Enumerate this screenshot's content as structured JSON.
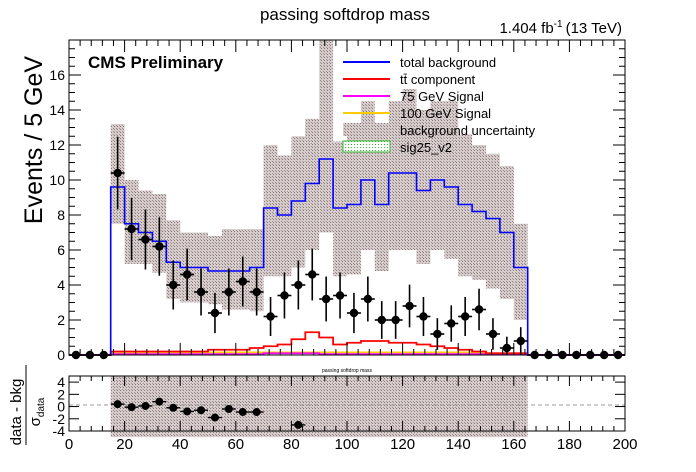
{
  "header": {
    "title": "passing softdrop mass",
    "lumi": "1.404 fb",
    "lumi_exp": "-1",
    "energy": "(13 TeV)",
    "cms_label": "CMS Preliminary"
  },
  "legend": {
    "entries": [
      {
        "label": "total background",
        "color": "#0000ff",
        "kind": "line"
      },
      {
        "label": "tt̄ component",
        "color": "#ff0000",
        "kind": "line"
      },
      {
        "label": "75 GeV Signal",
        "color": "#ff00ff",
        "kind": "line"
      },
      {
        "label": "100 GeV Signal",
        "color": "#ffcc00",
        "kind": "line"
      },
      {
        "label": "background uncertainty",
        "color": "#b8aaaa",
        "kind": "box"
      },
      {
        "label": "sig25_v2",
        "color": "#33bb33",
        "kind": "hatched"
      }
    ]
  },
  "colors": {
    "background_line": "#0000ff",
    "ttbar_line": "#ff0000",
    "signal75_line": "#ff00ff",
    "signal100_line": "#ffcc00",
    "uncertainty_fill": "#b8aaaa",
    "data_marker": "#000000"
  },
  "chart_data": [
    {
      "type": "line",
      "title": "passing softdrop mass",
      "ylabel": "Events / 5 GeV",
      "xlim": [
        0,
        200
      ],
      "ylim": [
        0,
        18
      ],
      "yticks": [
        0,
        2,
        4,
        6,
        8,
        10,
        12,
        14,
        16
      ],
      "xticks": [
        0,
        20,
        40,
        60,
        80,
        100,
        120,
        140,
        160,
        180,
        200
      ],
      "grid": false,
      "legend_position": "top-right",
      "bin_width": 5,
      "bin_edges_start": 0,
      "series": [
        {
          "name": "total background",
          "values": [
            0,
            0,
            0,
            9.6,
            7.5,
            7.0,
            6.5,
            5.3,
            5.0,
            5.0,
            4.8,
            4.8,
            4.8,
            5.0,
            8.4,
            8.0,
            8.8,
            9.8,
            11.2,
            8.4,
            8.6,
            10.0,
            8.6,
            10.4,
            10.4,
            9.4,
            10.0,
            9.6,
            8.6,
            8.2,
            7.8,
            7.0,
            5.0,
            0,
            0,
            0,
            0,
            0,
            0,
            0
          ]
        },
        {
          "name": "tt̄ component",
          "values": [
            0,
            0,
            0,
            0.2,
            0.2,
            0.2,
            0.2,
            0.2,
            0.2,
            0.2,
            0.3,
            0.3,
            0.3,
            0.4,
            0.5,
            0.6,
            0.9,
            1.3,
            1.0,
            0.6,
            0.7,
            0.8,
            0.8,
            0.7,
            0.7,
            0.6,
            0.5,
            0.4,
            0.3,
            0.2,
            0.1,
            0.1,
            0.1,
            0,
            0,
            0,
            0,
            0,
            0,
            0
          ]
        },
        {
          "name": "75 GeV Signal",
          "values": [
            0,
            0,
            0,
            0.05,
            0.05,
            0.05,
            0.05,
            0.05,
            0.05,
            0.05,
            0.05,
            0.05,
            0.05,
            0.05,
            0.1,
            0.1,
            0.1,
            0.1,
            0.05,
            0.05,
            0.05,
            0.05,
            0.05,
            0.05,
            0.05,
            0.05,
            0.05,
            0.05,
            0.05,
            0.05,
            0.05,
            0.05,
            0.05,
            0,
            0,
            0,
            0,
            0,
            0,
            0
          ]
        },
        {
          "name": "100 GeV Signal",
          "values": [
            0,
            0,
            0,
            0.1,
            0.1,
            0.15,
            0.15,
            0.15,
            0.15,
            0.15,
            0.15,
            0.15,
            0.15,
            0.15,
            0.15,
            0.15,
            0.15,
            0.15,
            0.15,
            0.15,
            0.15,
            0.15,
            0.15,
            0.15,
            0.15,
            0.15,
            0.15,
            0.15,
            0.15,
            0.1,
            0.1,
            0.1,
            0.1,
            0,
            0,
            0,
            0,
            0,
            0,
            0
          ]
        },
        {
          "name": "background uncertainty",
          "low": [
            0,
            0,
            0,
            7.5,
            5.2,
            5.2,
            4.7,
            3.2,
            3.0,
            3.0,
            2.9,
            2.6,
            2.6,
            2.5,
            4.5,
            4.5,
            5.0,
            6.0,
            7.0,
            4.5,
            4.6,
            6.0,
            4.8,
            6.0,
            6.0,
            5.2,
            6.0,
            5.5,
            4.5,
            4.3,
            3.8,
            3.2,
            2.0,
            0,
            0,
            0,
            0,
            0,
            0,
            0
          ],
          "high": [
            0,
            0,
            0,
            13.2,
            10.0,
            9.4,
            9.2,
            7.7,
            7.0,
            7.0,
            6.8,
            7.2,
            7.2,
            7.2,
            12.0,
            11.4,
            12.5,
            13.5,
            19.0,
            12.2,
            12.6,
            14.5,
            13.0,
            14.5,
            15.2,
            14.0,
            14.5,
            14.5,
            12.6,
            12.0,
            11.5,
            10.8,
            7.5,
            0,
            0,
            0,
            0,
            0,
            0,
            0
          ]
        },
        {
          "name": "data",
          "x": [
            2.5,
            7.5,
            12.5,
            17.5,
            22.5,
            27.5,
            32.5,
            37.5,
            42.5,
            47.5,
            52.5,
            57.5,
            62.5,
            67.5,
            72.5,
            77.5,
            82.5,
            87.5,
            92.5,
            97.5,
            102.5,
            107.5,
            112.5,
            117.5,
            122.5,
            127.5,
            132.5,
            137.5,
            142.5,
            147.5,
            152.5,
            157.5,
            162.5,
            167.5,
            172.5,
            177.5,
            182.5,
            187.5,
            192.5,
            197.5
          ],
          "values": [
            0,
            0,
            0,
            10.4,
            7.2,
            6.6,
            6.2,
            4.0,
            4.6,
            3.6,
            2.4,
            3.6,
            4.2,
            3.6,
            2.2,
            3.4,
            4.0,
            4.6,
            3.2,
            3.4,
            2.4,
            3.2,
            2.0,
            2.0,
            2.8,
            2.2,
            1.2,
            1.8,
            2.2,
            2.6,
            1.2,
            0.4,
            0.8,
            0,
            0,
            0,
            0,
            0,
            0,
            0
          ]
        }
      ]
    },
    {
      "type": "scatter",
      "title": "passing softdrop mass",
      "ylabel": "data - bkg",
      "ylabel2": "σ",
      "ylabel2_sub": "data",
      "xlabel": "",
      "xlim": [
        0,
        200
      ],
      "ylim": [
        -4,
        5
      ],
      "yticks": [
        -4,
        -2,
        0,
        2,
        4
      ],
      "xticks": [
        0,
        20,
        40,
        60,
        80,
        100,
        120,
        140,
        160,
        180,
        200
      ],
      "series": [
        {
          "name": "pull",
          "x": [
            17.5,
            22.5,
            27.5,
            32.5,
            37.5,
            42.5,
            47.5,
            52.5,
            57.5,
            62.5,
            67.5,
            82.5
          ],
          "values": [
            0.4,
            -0.1,
            0.1,
            0.8,
            -0.2,
            -0.8,
            -0.6,
            -1.8,
            -0.4,
            -0.9,
            -0.9,
            -3.0
          ]
        },
        {
          "name": "uncertainty",
          "low": -5,
          "high": 5,
          "x_range": [
            15,
            165
          ]
        }
      ]
    }
  ]
}
